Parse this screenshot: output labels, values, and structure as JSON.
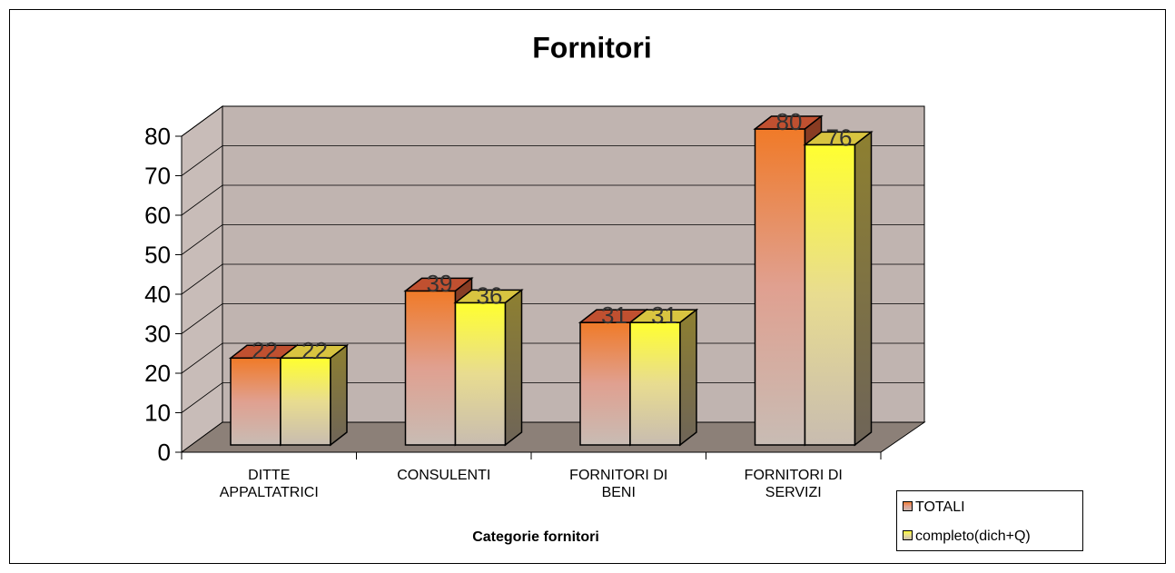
{
  "chart_data": {
    "type": "bar3d",
    "title": "Fornitori",
    "x_label": "Categorie fornitori",
    "categories": [
      "DITTE APPALTATRICI",
      "CONSULENTI",
      "FORNITORI DI BENI",
      "FORNITORI DI SERVIZI"
    ],
    "series": [
      {
        "name": "TOTALI",
        "color": "#f07f2f",
        "values": [
          22,
          39,
          31,
          80
        ]
      },
      {
        "name": "completo(dich+Q)",
        "color": "#ffff33",
        "values": [
          22,
          36,
          31,
          76
        ]
      }
    ],
    "ylim": [
      0,
      80
    ],
    "yticks": [
      0,
      10,
      20,
      30,
      40,
      50,
      60,
      70,
      80
    ],
    "grid": true,
    "legend": "bottom-right"
  }
}
